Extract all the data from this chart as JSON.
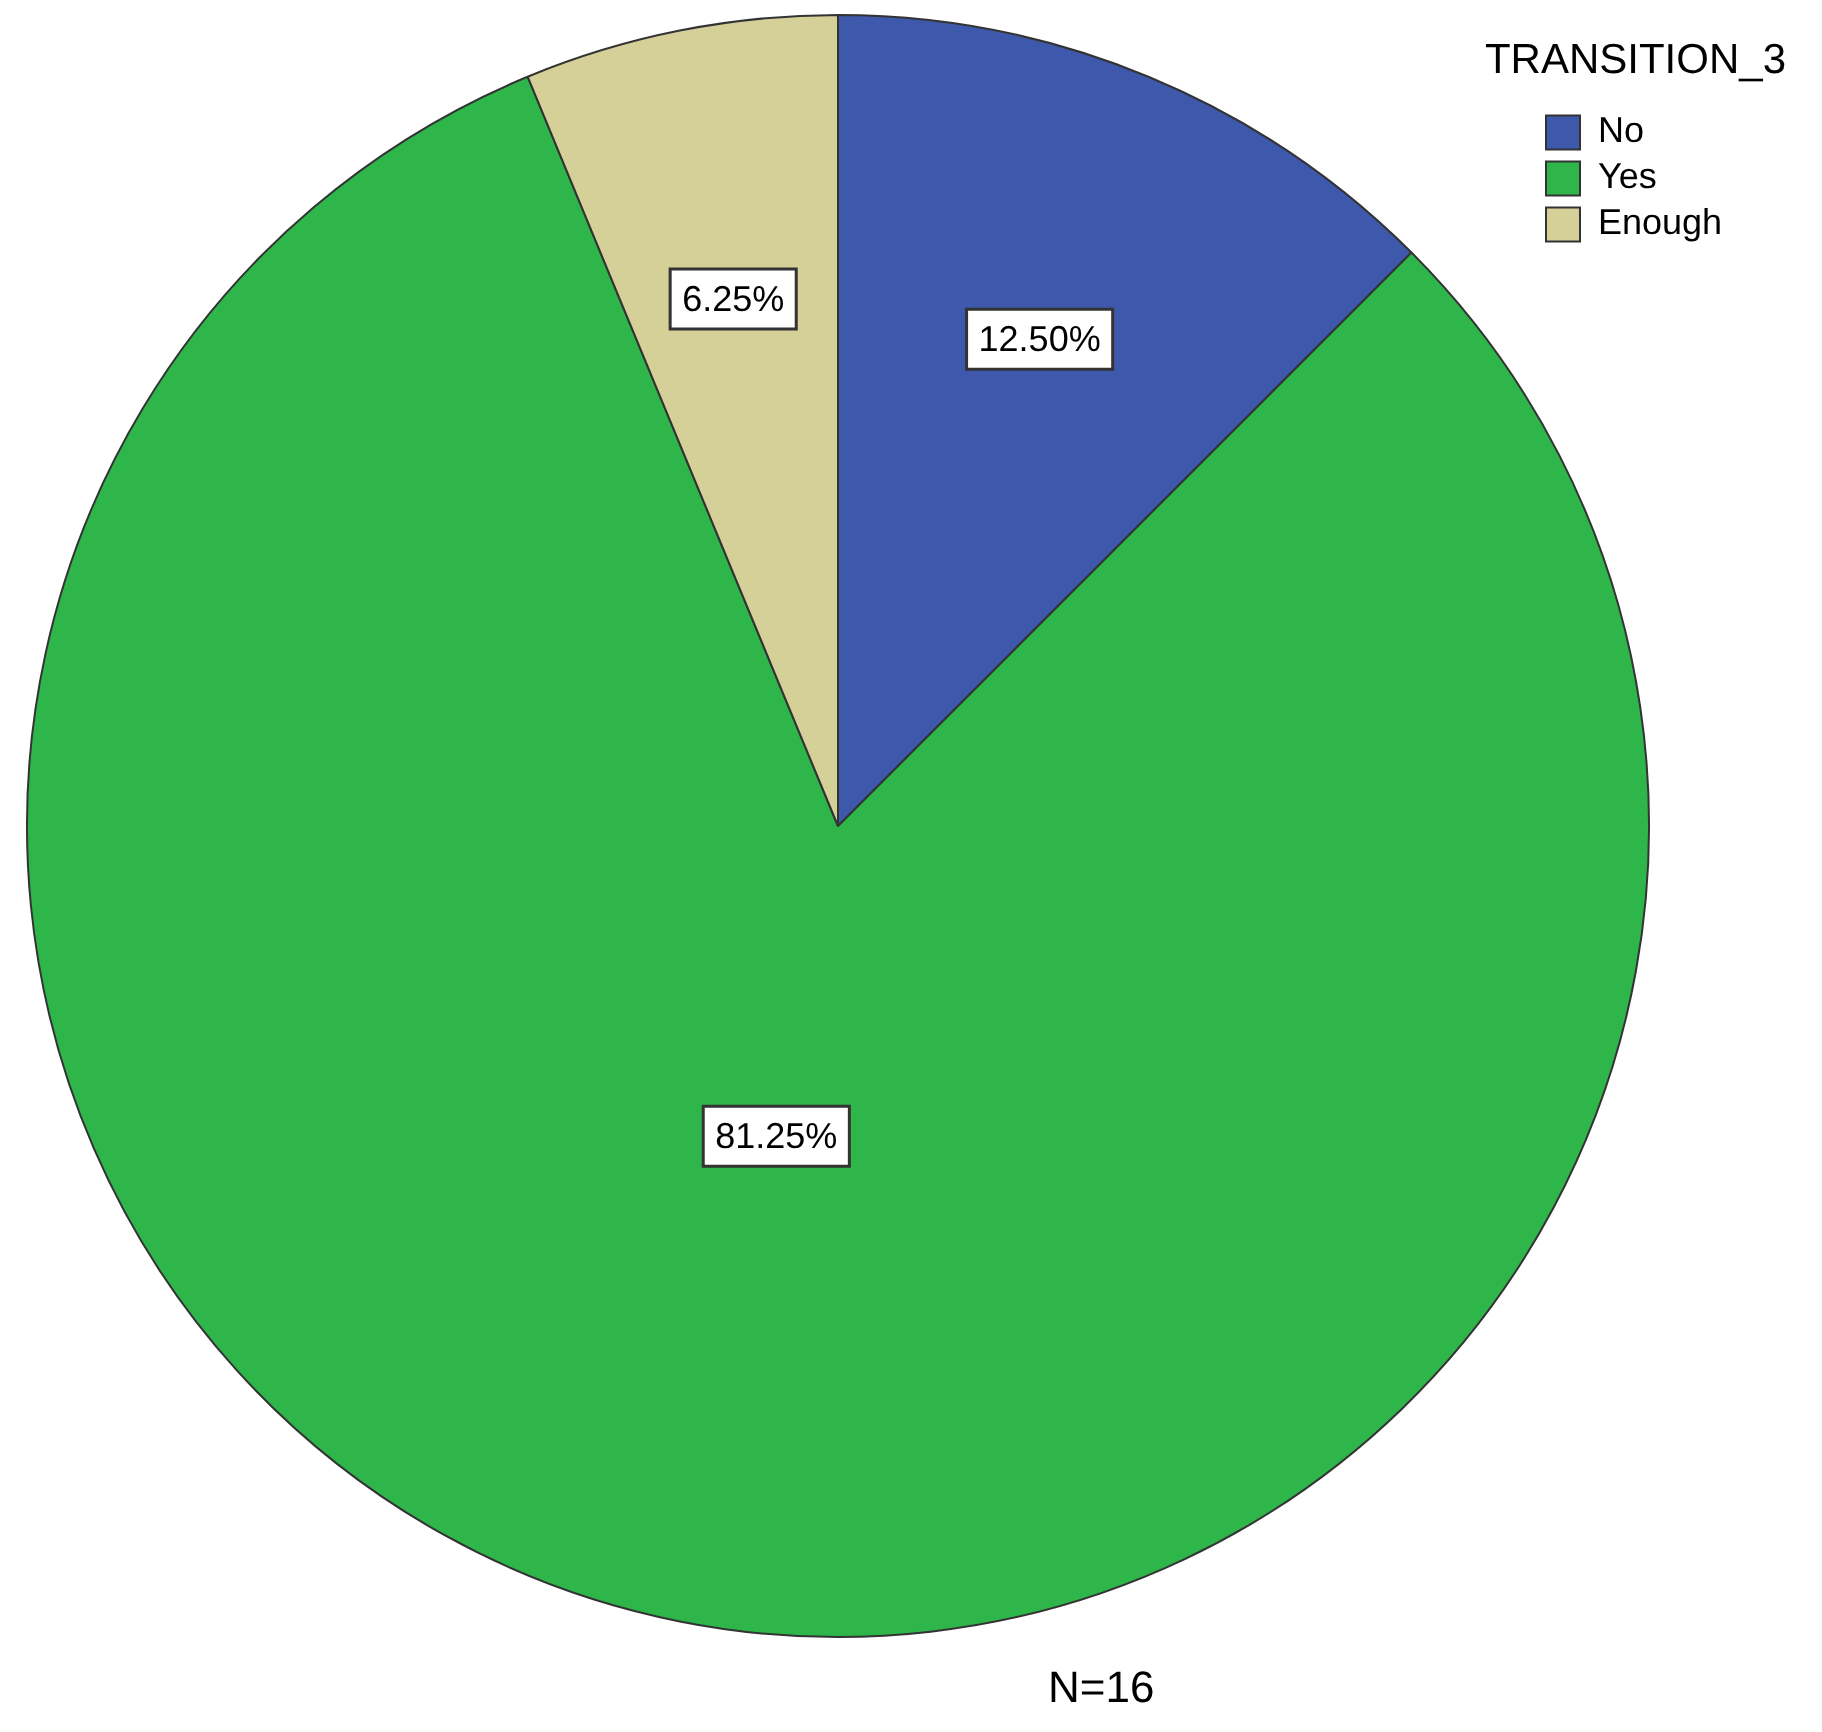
{
  "chart_data": {
    "type": "pie",
    "categories": [
      "No",
      "Yes",
      "Enough"
    ],
    "values": [
      12.5,
      81.25,
      6.25
    ],
    "colors": [
      "#3e58ac",
      "#2fb64b",
      "#d5cf98"
    ],
    "value_labels": [
      "12.50%",
      "81.25%",
      "6.25%"
    ],
    "legend_title": "TRANSITION_3",
    "legend": "top right",
    "annotations": [
      "N=16"
    ]
  }
}
